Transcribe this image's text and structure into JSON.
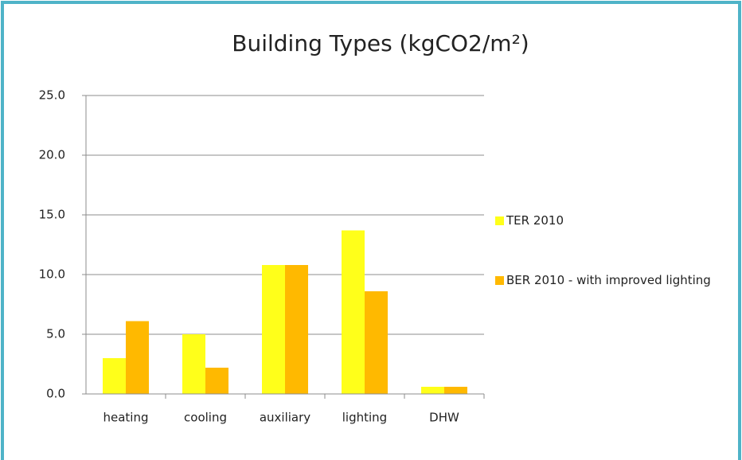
{
  "chart_data": {
    "type": "bar",
    "title": "Building Types (kgCO2/m²)",
    "categories": [
      "heating",
      "cooling",
      "auxiliary",
      "lighting",
      "DHW"
    ],
    "series": [
      {
        "name": "TER 2010",
        "color": "#ffff1a",
        "values": [
          3.0,
          5.0,
          10.8,
          13.7,
          0.6
        ]
      },
      {
        "name": "BER 2010 - with improved lighting",
        "color": "#ffb900",
        "values": [
          6.1,
          2.2,
          10.8,
          8.6,
          0.6
        ]
      }
    ],
    "ylim": [
      0,
      25
    ],
    "yticks": [
      {
        "value": 0,
        "label": "0.0"
      },
      {
        "value": 5,
        "label": "5.0"
      },
      {
        "value": 10,
        "label": "10.0"
      },
      {
        "value": 15,
        "label": "15.0"
      },
      {
        "value": 20,
        "label": "20.0"
      },
      {
        "value": 25,
        "label": "25.0"
      }
    ],
    "grid": true,
    "legend": "right"
  }
}
